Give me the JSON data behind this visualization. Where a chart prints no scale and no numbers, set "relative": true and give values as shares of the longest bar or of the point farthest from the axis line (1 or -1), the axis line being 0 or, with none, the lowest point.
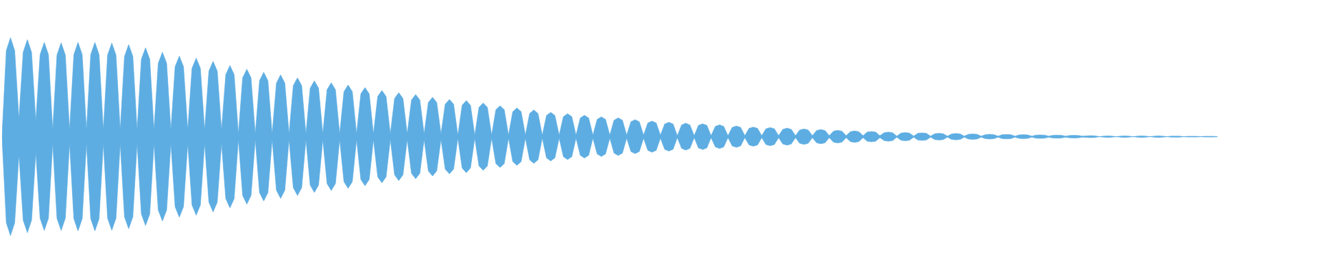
{
  "chart_data": {
    "type": "area",
    "relative": true,
    "categories": [
      null,
      null,
      null,
      null,
      null,
      null,
      null,
      null,
      null,
      null,
      null,
      null,
      null,
      null,
      null,
      null,
      null,
      null,
      null,
      null,
      null,
      null,
      null,
      null,
      null,
      null,
      null,
      null,
      null,
      null,
      null,
      null,
      null,
      null,
      null,
      null,
      null,
      null,
      null,
      null,
      null,
      null,
      null,
      null,
      null,
      null,
      null,
      null,
      null,
      null,
      null,
      null,
      null,
      null,
      null,
      null,
      null,
      null,
      null,
      null,
      null,
      null,
      null,
      null,
      null,
      null,
      null,
      null,
      null,
      null,
      null,
      null,
      null,
      null,
      null,
      null,
      null,
      null,
      null,
      null,
      null,
      null,
      null,
      null,
      null,
      null,
      null,
      null,
      null,
      null,
      null,
      null,
      null,
      null,
      null,
      null,
      null,
      null,
      null,
      null,
      null,
      null,
      null,
      null,
      null,
      null,
      null,
      null,
      null,
      null,
      null,
      null,
      null,
      null,
      null,
      null,
      null,
      null,
      null,
      null,
      null,
      null,
      null,
      null,
      null,
      null,
      null,
      null,
      null,
      null,
      null,
      null,
      null,
      null,
      null,
      null,
      null,
      null,
      null,
      null,
      null,
      null,
      null,
      null,
      null,
      null,
      null,
      null,
      null,
      null,
      null,
      null,
      null,
      null,
      null,
      null,
      null,
      null,
      null,
      null,
      null,
      null,
      null,
      null,
      null,
      null,
      null,
      null,
      null,
      null,
      null,
      null,
      null,
      null,
      null,
      null,
      null,
      null,
      null,
      null,
      null,
      null,
      null,
      null,
      null,
      null,
      null,
      null,
      null,
      null,
      null,
      null,
      null,
      null,
      null,
      null,
      null,
      null,
      null,
      null,
      null,
      null,
      null,
      null,
      null,
      null,
      null,
      null,
      null,
      null,
      null,
      null,
      null,
      null,
      null,
      null,
      null,
      null,
      null,
      null,
      null,
      null,
      null,
      null,
      null,
      null,
      null,
      null,
      null,
      null,
      null,
      null,
      null,
      null,
      null,
      null,
      null,
      null,
      null,
      null,
      null,
      null,
      null,
      null,
      null,
      null,
      null,
      null,
      null,
      null,
      null,
      null,
      null,
      null,
      null,
      null,
      null,
      null,
      null,
      null,
      null,
      null,
      null,
      null,
      null,
      null,
      null,
      null,
      null,
      null,
      null,
      null,
      null,
      null,
      null,
      null,
      null,
      null,
      null,
      null,
      null,
      null,
      null,
      null,
      null,
      null,
      null,
      null,
      null
    ],
    "series": [
      {
        "color": "#5dade2",
        "values": [
          0.02,
          0.87,
          1.0,
          0.87,
          0.18,
          0.852,
          0.98,
          0.852,
          0.16,
          0.828,
          0.952,
          0.828,
          0.07,
          0.824,
          0.948,
          0.824,
          0.07,
          0.828,
          0.952,
          0.828,
          0.07,
          0.828,
          0.952,
          0.828,
          0.07,
          0.824,
          0.946,
          0.824,
          0.07,
          0.81,
          0.93,
          0.81,
          0.07,
          0.782,
          0.898,
          0.782,
          0.07,
          0.742,
          0.852,
          0.742,
          0.07,
          0.708,
          0.814,
          0.708,
          0.07,
          0.69,
          0.794,
          0.69,
          0.07,
          0.662,
          0.76,
          0.662,
          0.07,
          0.626,
          0.72,
          0.626,
          0.03,
          0.594,
          0.682,
          0.594,
          0.03,
          0.566,
          0.65,
          0.566,
          0.03,
          0.542,
          0.624,
          0.542,
          0.03,
          0.516,
          0.594,
          0.516,
          0.03,
          0.49,
          0.564,
          0.49,
          0.03,
          0.474,
          0.544,
          0.474,
          0.03,
          0.454,
          0.522,
          0.454,
          0.03,
          0.432,
          0.496,
          0.432,
          0.03,
          0.406,
          0.466,
          0.406,
          0.03,
          0.386,
          0.444,
          0.386,
          0.03,
          0.37,
          0.426,
          0.37,
          0.03,
          0.346,
          0.398,
          0.346,
          0.03,
          0.328,
          0.376,
          0.328,
          0.016,
          0.316,
          0.364,
          0.316,
          0.016,
          0.296,
          0.34,
          0.296,
          0.016,
          0.272,
          0.312,
          0.272,
          0.016,
          0.252,
          0.29,
          0.252,
          0.016,
          0.234,
          0.27,
          0.234,
          0.016,
          0.214,
          0.246,
          0.214,
          0.016,
          0.202,
          0.232,
          0.202,
          0.016,
          0.188,
          0.216,
          0.188,
          0.016,
          0.174,
          0.2,
          0.174,
          0.016,
          0.166,
          0.19,
          0.166,
          0.016,
          0.15,
          0.172,
          0.15,
          0.016,
          0.138,
          0.158,
          0.138,
          0.016,
          0.128,
          0.146,
          0.128,
          0.01,
          0.118,
          0.136,
          0.118,
          0.01,
          0.114,
          0.13,
          0.114,
          0.01,
          0.104,
          0.12,
          0.104,
          0.01,
          0.094,
          0.108,
          0.094,
          0.01,
          0.084,
          0.096,
          0.084,
          0.01,
          0.08,
          0.092,
          0.08,
          0.01,
          0.074,
          0.086,
          0.074,
          0.01,
          0.068,
          0.078,
          0.068,
          0.01,
          0.062,
          0.072,
          0.062,
          0.01,
          0.056,
          0.064,
          0.056,
          0.01,
          0.05,
          0.058,
          0.05,
          0.01,
          0.046,
          0.052,
          0.046,
          0.01,
          0.04,
          0.046,
          0.04,
          0.006,
          0.036,
          0.042,
          0.036,
          0.006,
          0.034,
          0.038,
          0.034,
          0.006,
          0.03,
          0.034,
          0.03,
          0.006,
          0.028,
          0.032,
          0.028,
          0.006,
          0.024,
          0.028,
          0.024,
          0.006,
          0.02,
          0.024,
          0.02,
          0.006,
          0.02,
          0.022,
          0.02,
          0.006,
          0.018,
          0.02,
          0.018,
          0.006,
          0.016,
          0.018,
          0.016,
          0.006,
          0.014,
          0.016,
          0.014,
          0.006,
          0.012,
          0.014,
          0.012,
          0.006,
          0.008,
          0.01,
          0.008,
          0,
          0.006,
          0.008,
          0.006,
          0,
          0.006,
          0.008,
          0.006,
          0,
          0.006,
          0.008,
          0.006,
          0,
          0.006,
          0.008,
          0.006,
          0,
          0.006,
          0.006,
          0.006,
          0,
          0.004,
          0.004,
          0.004,
          0,
          0.004,
          0.004,
          0.004,
          0
        ]
      },
      {
        "color": "#5dade2",
        "values": [
          -0.02,
          -0.87,
          -1.0,
          -0.87,
          -0.18,
          -0.844,
          -0.97,
          -0.844,
          -0.16,
          -0.824,
          -0.948,
          -0.824,
          -0.07,
          -0.824,
          -0.948,
          -0.824,
          -0.07,
          -0.828,
          -0.952,
          -0.828,
          -0.07,
          -0.828,
          -0.952,
          -0.828,
          -0.07,
          -0.824,
          -0.946,
          -0.824,
          -0.07,
          -0.81,
          -0.93,
          -0.81,
          -0.07,
          -0.782,
          -0.898,
          -0.782,
          -0.07,
          -0.742,
          -0.852,
          -0.742,
          -0.07,
          -0.708,
          -0.814,
          -0.708,
          -0.07,
          -0.69,
          -0.794,
          -0.69,
          -0.07,
          -0.662,
          -0.76,
          -0.662,
          -0.07,
          -0.626,
          -0.72,
          -0.626,
          -0.03,
          -0.594,
          -0.682,
          -0.594,
          -0.03,
          -0.566,
          -0.65,
          -0.566,
          -0.03,
          -0.542,
          -0.624,
          -0.542,
          -0.03,
          -0.516,
          -0.594,
          -0.516,
          -0.03,
          -0.49,
          -0.564,
          -0.49,
          -0.03,
          -0.474,
          -0.544,
          -0.474,
          -0.03,
          -0.454,
          -0.522,
          -0.454,
          -0.03,
          -0.432,
          -0.496,
          -0.432,
          -0.03,
          -0.406,
          -0.466,
          -0.406,
          -0.03,
          -0.386,
          -0.444,
          -0.386,
          -0.03,
          -0.37,
          -0.426,
          -0.37,
          -0.03,
          -0.346,
          -0.398,
          -0.346,
          -0.03,
          -0.328,
          -0.376,
          -0.328,
          -0.016,
          -0.316,
          -0.364,
          -0.316,
          -0.016,
          -0.296,
          -0.34,
          -0.296,
          -0.016,
          -0.272,
          -0.312,
          -0.272,
          -0.016,
          -0.252,
          -0.29,
          -0.252,
          -0.016,
          -0.234,
          -0.27,
          -0.234,
          -0.016,
          -0.214,
          -0.246,
          -0.214,
          -0.016,
          -0.202,
          -0.232,
          -0.202,
          -0.016,
          -0.188,
          -0.216,
          -0.188,
          -0.016,
          -0.174,
          -0.2,
          -0.174,
          -0.016,
          -0.166,
          -0.19,
          -0.166,
          -0.016,
          -0.15,
          -0.172,
          -0.15,
          -0.016,
          -0.138,
          -0.158,
          -0.138,
          -0.016,
          -0.128,
          -0.146,
          -0.128,
          -0.01,
          -0.118,
          -0.136,
          -0.118,
          -0.01,
          -0.114,
          -0.13,
          -0.114,
          -0.01,
          -0.104,
          -0.12,
          -0.104,
          -0.01,
          -0.094,
          -0.108,
          -0.094,
          -0.01,
          -0.084,
          -0.096,
          -0.084,
          -0.01,
          -0.08,
          -0.092,
          -0.08,
          -0.01,
          -0.074,
          -0.086,
          -0.074,
          -0.01,
          -0.068,
          -0.078,
          -0.068,
          -0.01,
          -0.062,
          -0.072,
          -0.062,
          -0.01,
          -0.056,
          -0.064,
          -0.056,
          -0.01,
          -0.05,
          -0.058,
          -0.05,
          -0.01,
          -0.046,
          -0.052,
          -0.046,
          -0.01,
          -0.04,
          -0.046,
          -0.04,
          -0.006,
          -0.036,
          -0.042,
          -0.036,
          -0.006,
          -0.034,
          -0.038,
          -0.034,
          -0.006,
          -0.03,
          -0.034,
          -0.03,
          -0.006,
          -0.028,
          -0.032,
          -0.028,
          -0.006,
          -0.024,
          -0.028,
          -0.024,
          -0.006,
          -0.02,
          -0.024,
          -0.02,
          -0.006,
          -0.02,
          -0.022,
          -0.02,
          -0.006,
          -0.018,
          -0.02,
          -0.018,
          -0.006,
          -0.016,
          -0.018,
          -0.016,
          -0.006,
          -0.014,
          -0.016,
          -0.014,
          -0.006,
          -0.012,
          -0.014,
          -0.012,
          -0.006,
          -0.008,
          -0.01,
          -0.008,
          0,
          -0.006,
          -0.008,
          -0.006,
          0,
          -0.006,
          -0.008,
          -0.006,
          0,
          -0.006,
          -0.008,
          -0.006,
          0,
          -0.006,
          -0.008,
          -0.006,
          0,
          -0.006,
          -0.006,
          -0.006,
          0,
          -0.004,
          -0.004,
          -0.004,
          0,
          -0.004,
          -0.004,
          -0.004,
          0
        ]
      }
    ]
  }
}
